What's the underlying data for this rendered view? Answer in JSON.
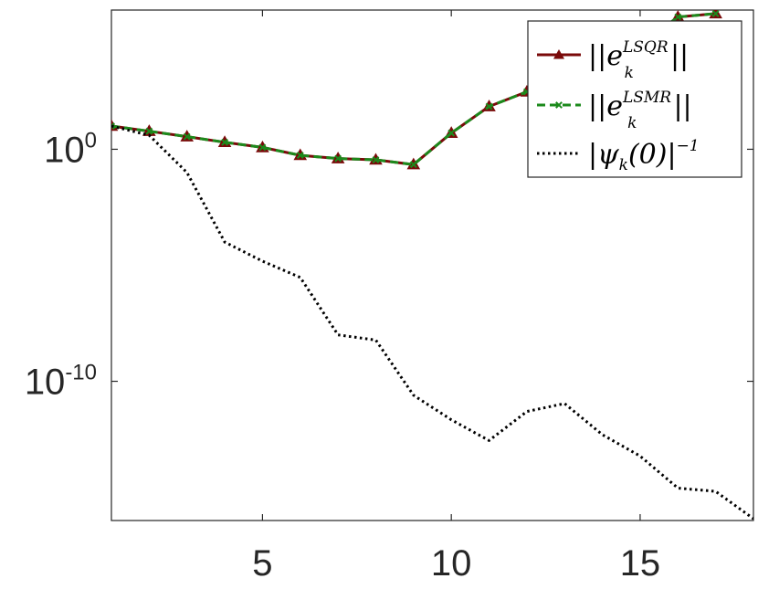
{
  "chart_data": {
    "type": "line",
    "xlabel": "",
    "ylabel": "",
    "title": "",
    "xlim": [
      1,
      18
    ],
    "ylim": [
      1e-16,
      1000000.0
    ],
    "yscale": "log",
    "xticks": [
      5,
      10,
      15
    ],
    "yticks": [
      {
        "value": 1,
        "base": "10",
        "exp": "0"
      },
      {
        "value": 1e-10,
        "base": "10",
        "exp": "-10"
      }
    ],
    "grid": false,
    "legend_position": "top-right",
    "series": [
      {
        "name": "||e_k^{LSQR}||",
        "legend": {
          "pre": "||e",
          "sup": "LSQR",
          "sub": "k",
          "post": "||"
        },
        "color": "#7a0a0a",
        "linestyle": "solid",
        "marker": "triangle",
        "x": [
          1,
          2,
          3,
          4,
          5,
          6,
          7,
          8,
          9,
          10,
          11,
          12,
          13,
          14,
          15,
          16,
          17
        ],
        "y": [
          10,
          6,
          3.5,
          2,
          1.2,
          0.55,
          0.4,
          0.35,
          0.22,
          5,
          70,
          300,
          800,
          2000,
          30000,
          500000,
          700000
        ]
      },
      {
        "name": "||e_k^{LSMR}||",
        "legend": {
          "pre": "||e",
          "sup": "LSMR",
          "sub": "k",
          "post": "||"
        },
        "color": "#1c8a1c",
        "linestyle": "dashed",
        "marker": "x",
        "x": [
          1,
          2,
          3,
          4,
          5,
          6,
          7,
          8,
          9,
          10,
          11,
          12,
          13,
          14,
          15,
          16,
          17
        ],
        "y": [
          10,
          6,
          3.5,
          2,
          1.2,
          0.55,
          0.4,
          0.35,
          0.22,
          5,
          70,
          300,
          800,
          2000,
          30000,
          500000,
          700000
        ]
      },
      {
        "name": "|psi_k(0)|^{-1}",
        "legend": {
          "pre": "|ψ",
          "sub": "k",
          "mid": "(0)|",
          "sup": "−1",
          "post": ""
        },
        "color": "#000000",
        "linestyle": "dotted",
        "marker": "none",
        "x": [
          1,
          2,
          3,
          4,
          5,
          6,
          7,
          8,
          9,
          10,
          11,
          12,
          13,
          14,
          15,
          16,
          17,
          18
        ],
        "y": [
          10,
          4,
          0.1,
          0.0001,
          1.5e-05,
          3e-06,
          1e-08,
          6e-09,
          2.5e-11,
          2.2e-12,
          2.8e-13,
          5e-12,
          1.1e-11,
          5e-13,
          6e-14,
          2.5e-15,
          1.8e-15,
          1.2e-16
        ]
      }
    ]
  }
}
